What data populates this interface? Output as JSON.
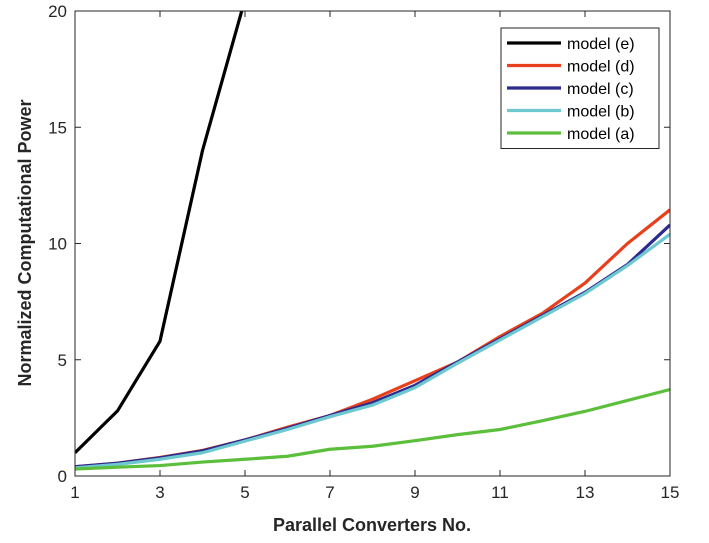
{
  "chart_data": {
    "type": "line",
    "title": "",
    "xlabel": "Parallel Converters No.",
    "ylabel": "Normalized Computational Power",
    "xlim": [
      1,
      15
    ],
    "ylim": [
      0,
      20
    ],
    "xticks": [
      1,
      3,
      5,
      7,
      9,
      11,
      13,
      15
    ],
    "yticks": [
      0,
      5,
      10,
      15,
      20
    ],
    "xtick_labels": [
      "1",
      "3",
      "5",
      "7",
      "9",
      "11",
      "13",
      "15"
    ],
    "ytick_labels": [
      "0",
      "5",
      "10",
      "15",
      "20"
    ],
    "grid": false,
    "legend_position": "top-right",
    "series": [
      {
        "name": "model (e)",
        "color": "#000000",
        "x": [
          1,
          2,
          3,
          4,
          5,
          6
        ],
        "y": [
          1.0,
          2.8,
          5.8,
          14.0,
          20.5,
          30.0
        ]
      },
      {
        "name": "model (d)",
        "color": "#e8401c",
        "x": [
          1,
          2,
          3,
          4,
          5,
          6,
          7,
          8,
          9,
          10,
          11,
          12,
          13,
          14,
          15
        ],
        "y": [
          0.4,
          0.55,
          0.8,
          1.1,
          1.55,
          2.1,
          2.6,
          3.3,
          4.1,
          4.9,
          6.0,
          7.0,
          8.3,
          10.0,
          11.45
        ]
      },
      {
        "name": "model (c)",
        "color": "#2a2a8f",
        "x": [
          1,
          2,
          3,
          4,
          5,
          6,
          7,
          8,
          9,
          10,
          11,
          12,
          13,
          14,
          15
        ],
        "y": [
          0.4,
          0.55,
          0.78,
          1.08,
          1.55,
          2.05,
          2.6,
          3.15,
          3.9,
          4.9,
          5.9,
          6.9,
          7.9,
          9.1,
          10.8
        ]
      },
      {
        "name": "model (b)",
        "color": "#6dc8cf",
        "x": [
          1,
          2,
          3,
          4,
          5,
          6,
          7,
          8,
          9,
          10,
          11,
          12,
          13,
          14,
          15
        ],
        "y": [
          0.35,
          0.5,
          0.72,
          1.0,
          1.5,
          2.0,
          2.55,
          3.05,
          3.8,
          4.85,
          5.85,
          6.85,
          7.85,
          9.05,
          10.4
        ]
      },
      {
        "name": "model (a)",
        "color": "#5bbf3c",
        "x": [
          1,
          2,
          3,
          4,
          5,
          6,
          7,
          8,
          9,
          10,
          11,
          12,
          13,
          14,
          15
        ],
        "y": [
          0.3,
          0.38,
          0.45,
          0.6,
          0.72,
          0.85,
          1.15,
          1.28,
          1.52,
          1.78,
          2.0,
          2.38,
          2.78,
          3.25,
          3.72
        ]
      }
    ]
  }
}
